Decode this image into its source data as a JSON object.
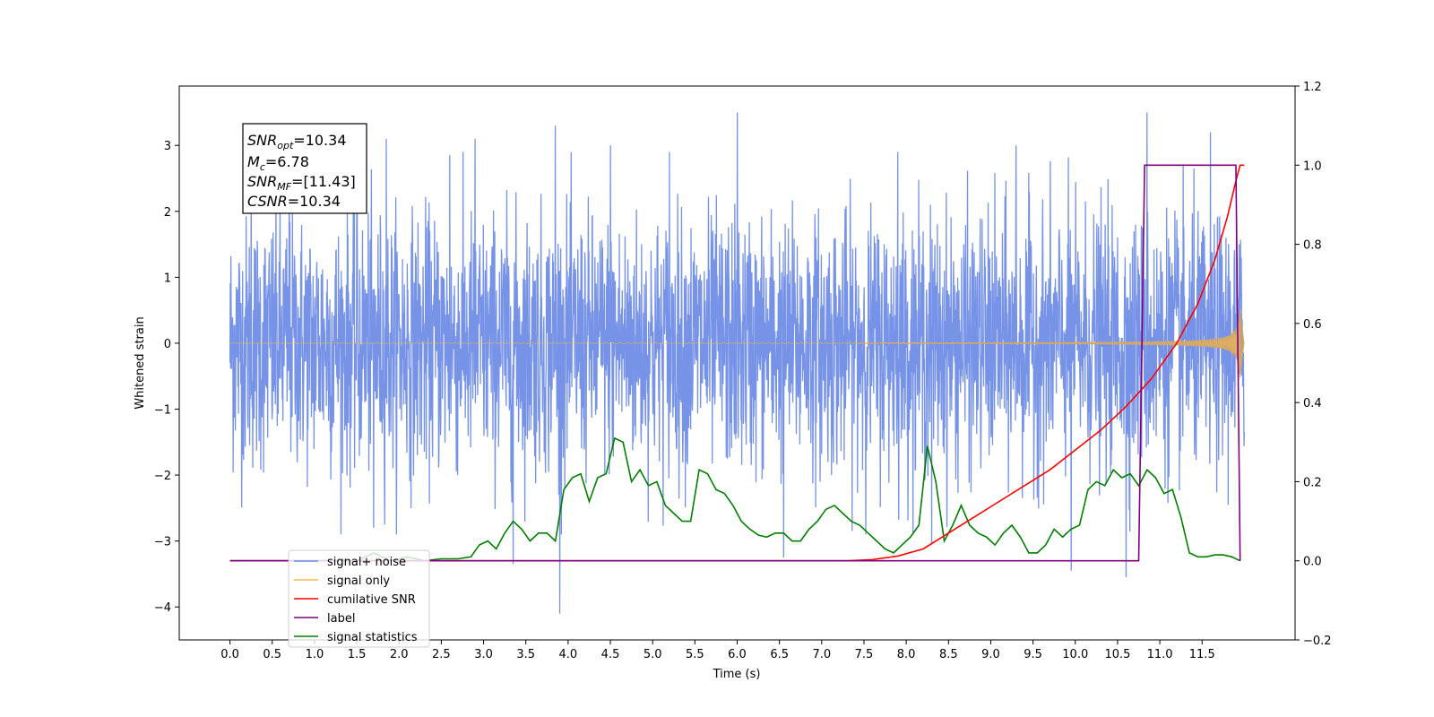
{
  "chart_data": {
    "type": "line",
    "xlabel": "Time (s)",
    "ylabel": "Whitened strain",
    "xlim": [
      -0.6,
      12.6
    ],
    "ylim": [
      -4.5,
      3.9
    ],
    "y2lim": [
      -0.2,
      1.2
    ],
    "x_ticks": [
      "0.0",
      "0.5",
      "1.0",
      "1.5",
      "2.0",
      "2.5",
      "3.0",
      "3.5",
      "4.0",
      "4.5",
      "5.0",
      "5.5",
      "6.0",
      "6.5",
      "7.0",
      "7.5",
      "8.0",
      "8.5",
      "9.0",
      "9.5",
      "10.0",
      "10.5",
      "11.0",
      "11.5"
    ],
    "y_ticks": [
      "3",
      "2",
      "1",
      "0",
      "−1",
      "−2",
      "−3",
      "−4"
    ],
    "y2_ticks": [
      "1.2",
      "1.0",
      "0.8",
      "0.6",
      "0.4",
      "0.2",
      "0.0",
      "−0.2"
    ],
    "info_box": {
      "snr_opt": "10.34",
      "mc": "6.78",
      "snr_mf": "[11.43]",
      "csnr": "10.34"
    },
    "legend": {
      "position": "lower-left",
      "entries": [
        {
          "label": "signal+ noise",
          "color": "#6f8de6"
        },
        {
          "label": "signal only",
          "color": "#f5b94f"
        },
        {
          "label": "cumilative SNR",
          "color": "#ff0000"
        },
        {
          "label": "label",
          "color": "#800080"
        },
        {
          "label": "signal statistics",
          "color": "#008000"
        }
      ]
    },
    "series": [
      {
        "name": "signal+ noise",
        "axis": "left",
        "color": "#6f8de6",
        "t_range": [
          0.0,
          12.0
        ],
        "noise_std": 0.95,
        "spikes": [
          [
            0.25,
            2.7
          ],
          [
            0.7,
            2.9
          ],
          [
            1.5,
            3.2
          ],
          [
            1.7,
            -2.8
          ],
          [
            1.85,
            3.1
          ],
          [
            2.6,
            2.85
          ],
          [
            2.9,
            3.1
          ],
          [
            3.35,
            -3.35
          ],
          [
            3.85,
            3.3
          ],
          [
            3.9,
            -4.1
          ],
          [
            4.5,
            3.0
          ],
          [
            5.2,
            2.9
          ],
          [
            6.0,
            3.5
          ],
          [
            6.55,
            -3.25
          ],
          [
            7.9,
            2.9
          ],
          [
            8.3,
            -3.05
          ],
          [
            9.3,
            3.0
          ],
          [
            9.95,
            -3.45
          ],
          [
            10.6,
            -3.55
          ],
          [
            10.85,
            3.5
          ],
          [
            11.6,
            3.2
          ]
        ]
      },
      {
        "name": "signal only",
        "axis": "left",
        "color": "#f5b94f",
        "chirp": {
          "t_start": 0.0,
          "t_merge": 11.95,
          "t_end": 12.0,
          "peak_amp": 0.95
        }
      },
      {
        "name": "cumilative SNR",
        "axis": "right",
        "color": "#ff0000",
        "points": [
          [
            0.0,
            0.0
          ],
          [
            7.3,
            0.0
          ],
          [
            7.6,
            0.003
          ],
          [
            7.9,
            0.012
          ],
          [
            8.2,
            0.03
          ],
          [
            8.5,
            0.07
          ],
          [
            8.8,
            0.11
          ],
          [
            9.1,
            0.15
          ],
          [
            9.4,
            0.19
          ],
          [
            9.7,
            0.23
          ],
          [
            10.0,
            0.28
          ],
          [
            10.3,
            0.33
          ],
          [
            10.6,
            0.39
          ],
          [
            10.9,
            0.46
          ],
          [
            11.2,
            0.55
          ],
          [
            11.45,
            0.65
          ],
          [
            11.65,
            0.76
          ],
          [
            11.8,
            0.87
          ],
          [
            11.9,
            0.96
          ],
          [
            11.95,
            1.0
          ],
          [
            12.0,
            1.0
          ]
        ]
      },
      {
        "name": "label",
        "axis": "right",
        "color": "#800080",
        "points": [
          [
            0.0,
            0.0
          ],
          [
            10.75,
            0.0
          ],
          [
            10.82,
            1.0
          ],
          [
            11.9,
            1.0
          ],
          [
            11.95,
            0.0
          ]
        ]
      },
      {
        "name": "signal statistics",
        "axis": "right",
        "color": "#008000",
        "points": [
          [
            0.0,
            0.0
          ],
          [
            1.5,
            0.0
          ],
          [
            1.7,
            0.02
          ],
          [
            1.9,
            0.0
          ],
          [
            2.1,
            0.01
          ],
          [
            2.3,
            0.0
          ],
          [
            2.5,
            0.005
          ],
          [
            2.7,
            0.005
          ],
          [
            2.85,
            0.01
          ],
          [
            2.95,
            0.04
          ],
          [
            3.05,
            0.05
          ],
          [
            3.15,
            0.03
          ],
          [
            3.25,
            0.07
          ],
          [
            3.35,
            0.1
          ],
          [
            3.45,
            0.08
          ],
          [
            3.55,
            0.05
          ],
          [
            3.65,
            0.07
          ],
          [
            3.75,
            0.07
          ],
          [
            3.85,
            0.05
          ],
          [
            3.95,
            0.18
          ],
          [
            4.05,
            0.21
          ],
          [
            4.15,
            0.22
          ],
          [
            4.25,
            0.15
          ],
          [
            4.35,
            0.21
          ],
          [
            4.45,
            0.22
          ],
          [
            4.55,
            0.31
          ],
          [
            4.65,
            0.3
          ],
          [
            4.75,
            0.2
          ],
          [
            4.85,
            0.23
          ],
          [
            4.95,
            0.19
          ],
          [
            5.05,
            0.2
          ],
          [
            5.15,
            0.14
          ],
          [
            5.25,
            0.12
          ],
          [
            5.35,
            0.1
          ],
          [
            5.45,
            0.1
          ],
          [
            5.55,
            0.23
          ],
          [
            5.65,
            0.22
          ],
          [
            5.75,
            0.18
          ],
          [
            5.85,
            0.17
          ],
          [
            5.95,
            0.14
          ],
          [
            6.05,
            0.1
          ],
          [
            6.15,
            0.08
          ],
          [
            6.25,
            0.065
          ],
          [
            6.35,
            0.06
          ],
          [
            6.45,
            0.07
          ],
          [
            6.55,
            0.07
          ],
          [
            6.65,
            0.05
          ],
          [
            6.75,
            0.05
          ],
          [
            6.85,
            0.08
          ],
          [
            6.95,
            0.1
          ],
          [
            7.05,
            0.13
          ],
          [
            7.15,
            0.14
          ],
          [
            7.25,
            0.12
          ],
          [
            7.35,
            0.1
          ],
          [
            7.45,
            0.09
          ],
          [
            7.55,
            0.07
          ],
          [
            7.65,
            0.05
          ],
          [
            7.75,
            0.03
          ],
          [
            7.85,
            0.02
          ],
          [
            7.95,
            0.04
          ],
          [
            8.05,
            0.06
          ],
          [
            8.15,
            0.09
          ],
          [
            8.25,
            0.29
          ],
          [
            8.35,
            0.2
          ],
          [
            8.45,
            0.05
          ],
          [
            8.55,
            0.09
          ],
          [
            8.65,
            0.14
          ],
          [
            8.75,
            0.09
          ],
          [
            8.85,
            0.07
          ],
          [
            8.95,
            0.06
          ],
          [
            9.05,
            0.04
          ],
          [
            9.15,
            0.07
          ],
          [
            9.25,
            0.09
          ],
          [
            9.35,
            0.06
          ],
          [
            9.45,
            0.02
          ],
          [
            9.55,
            0.02
          ],
          [
            9.65,
            0.04
          ],
          [
            9.75,
            0.08
          ],
          [
            9.85,
            0.06
          ],
          [
            9.95,
            0.08
          ],
          [
            10.05,
            0.09
          ],
          [
            10.15,
            0.18
          ],
          [
            10.25,
            0.2
          ],
          [
            10.35,
            0.19
          ],
          [
            10.45,
            0.23
          ],
          [
            10.55,
            0.21
          ],
          [
            10.65,
            0.22
          ],
          [
            10.75,
            0.19
          ],
          [
            10.85,
            0.23
          ],
          [
            10.95,
            0.21
          ],
          [
            11.05,
            0.17
          ],
          [
            11.15,
            0.18
          ],
          [
            11.25,
            0.11
          ],
          [
            11.35,
            0.02
          ],
          [
            11.45,
            0.01
          ],
          [
            11.55,
            0.01
          ],
          [
            11.65,
            0.015
          ],
          [
            11.75,
            0.015
          ],
          [
            11.85,
            0.01
          ],
          [
            11.95,
            0.0
          ]
        ]
      }
    ],
    "grid": false
  }
}
